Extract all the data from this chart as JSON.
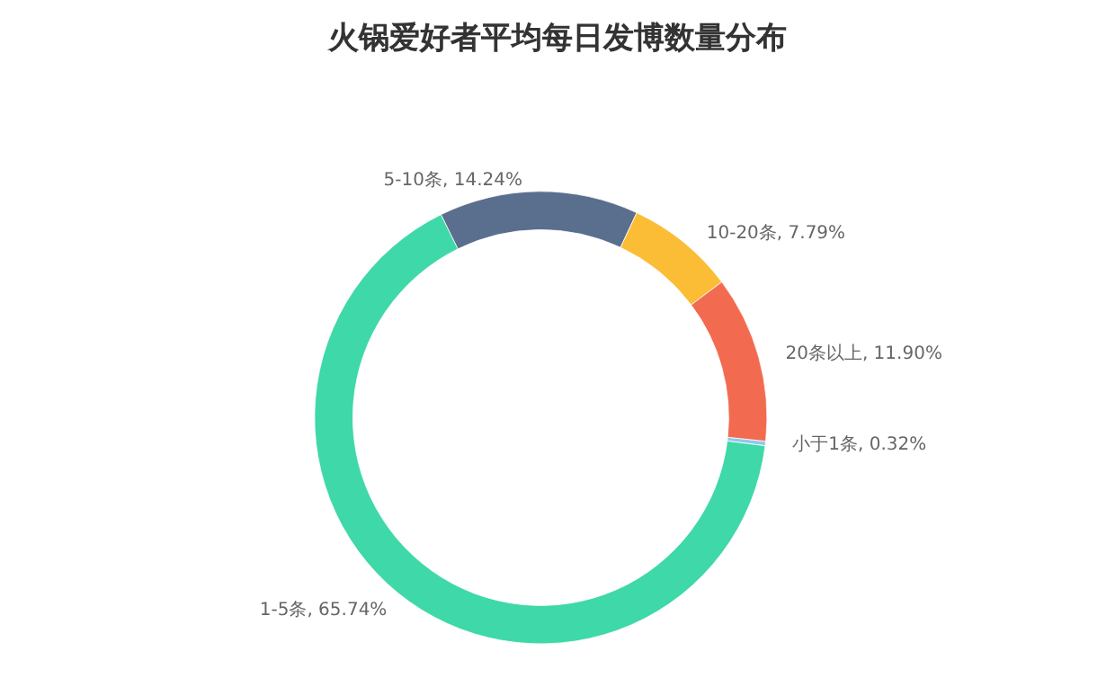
{
  "chart_data": {
    "type": "donut",
    "title": "火锅爱好者平均每日发博数量分布",
    "categories": [
      "小于1条",
      "1-5条",
      "5-10条",
      "10-20条",
      "20条以上"
    ],
    "values": [
      0.32,
      65.74,
      14.24,
      7.79,
      11.9
    ],
    "value_labels": [
      "0.32%",
      "65.74%",
      "14.24%",
      "7.79%",
      "11.90%"
    ],
    "colors": [
      "#8fc9ee",
      "#3fd8a8",
      "#5a6e8e",
      "#fbbd36",
      "#f26b50"
    ],
    "legend": false
  }
}
